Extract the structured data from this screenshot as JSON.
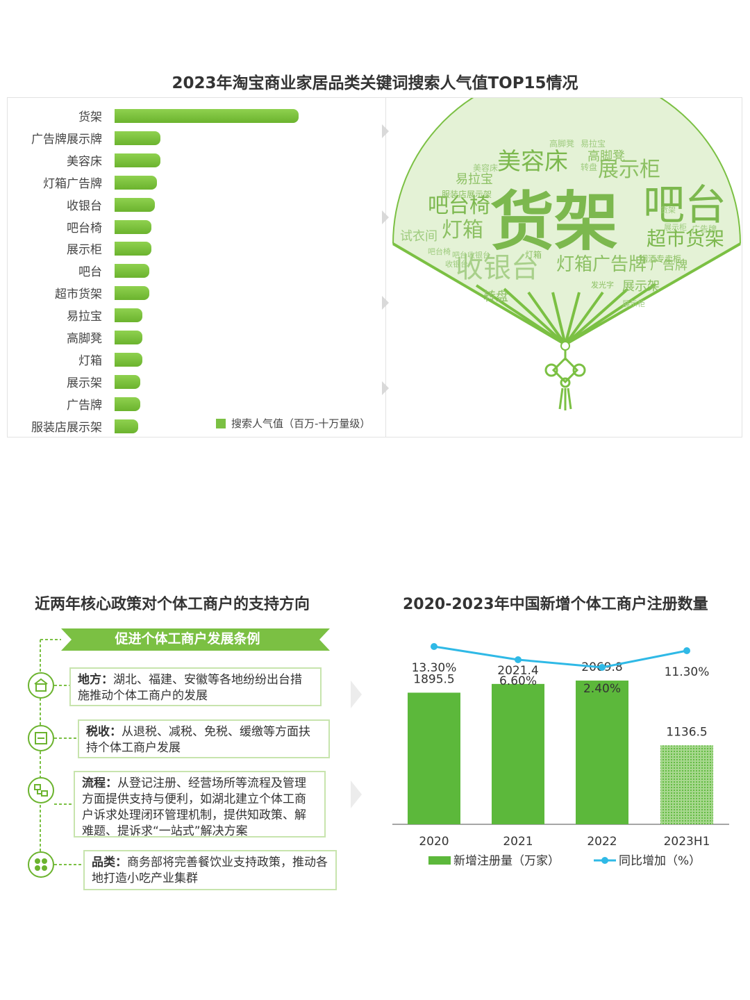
{
  "top": {
    "title": "2023年淘宝商业家居品类关键词搜索人气值TOP15情况",
    "legend": "搜索人气值（百万-十万量级）",
    "chart_data": {
      "type": "bar",
      "orientation": "horizontal",
      "categories": [
        "货架",
        "广告牌展示牌",
        "美容床",
        "灯箱广告牌",
        "收银台",
        "吧台椅",
        "展示柜",
        "吧台",
        "超市货架",
        "易拉宝",
        "高脚凳",
        "灯箱",
        "展示架",
        "广告牌",
        "服装店展示架"
      ],
      "values": [
        100,
        25,
        25,
        23,
        22,
        20,
        20,
        19,
        19,
        15,
        15,
        15,
        14,
        14,
        13
      ],
      "series_name": "搜索人气值（百万-十万量级）",
      "title": "2023年淘宝商业家居品类关键词搜索人气值TOP15情况",
      "xlabel": "",
      "ylabel": ""
    },
    "wordcloud": {
      "words": [
        {
          "text": "货架"
        },
        {
          "text": "吧台"
        },
        {
          "text": "美容床"
        },
        {
          "text": "展示柜"
        },
        {
          "text": "吧台椅"
        },
        {
          "text": "灯箱"
        },
        {
          "text": "收银台"
        },
        {
          "text": "超市货架"
        },
        {
          "text": "灯箱广告牌"
        },
        {
          "text": "高脚凳"
        },
        {
          "text": "易拉宝"
        },
        {
          "text": "试衣间"
        },
        {
          "text": "广告牌"
        },
        {
          "text": "展示架"
        },
        {
          "text": "转盘"
        },
        {
          "text": "服装店展示架"
        },
        {
          "text": "吧台收银台"
        },
        {
          "text": "发光字"
        },
        {
          "text": "展示柜"
        },
        {
          "text": "烟酒专卖柜"
        },
        {
          "text": "高脚凳"
        },
        {
          "text": "易拉宝"
        },
        {
          "text": "美容床"
        },
        {
          "text": "货架"
        },
        {
          "text": "转盘"
        },
        {
          "text": "广告牌"
        },
        {
          "text": "灯箱"
        },
        {
          "text": "吧台椅"
        },
        {
          "text": "收银台"
        },
        {
          "text": "展示柜"
        }
      ]
    }
  },
  "policy": {
    "title": "近两年核心政策对个体工商户的支持方向",
    "banner": "促进个体工商户发展条例",
    "items": [
      {
        "key": "地方：",
        "text": "湖北、福建、安徽等各地纷纷出台措施推动个体工商户的发展",
        "icon": "building-icon"
      },
      {
        "key": "税收：",
        "text": "从退税、减税、免税、缓缴等方面扶持个体工商户发展",
        "icon": "tax-icon"
      },
      {
        "key": "流程：",
        "text": "从登记注册、经营场所等流程及管理方面提供支持与便利，如湖北建立个体工商户诉求处理闭环管理机制，提供知政策、解难题、提诉求“一站式”解决方案",
        "icon": "process-icon"
      },
      {
        "key": "品类：",
        "text": "商务部将完善餐饮业支持政策，推动各地打造小吃产业集群",
        "icon": "category-icon"
      }
    ]
  },
  "registration": {
    "title": "2020-2023年中国新增个体工商户注册数量",
    "chart_data": {
      "type": "bar",
      "title": "2020-2023年中国新增个体工商户注册数量",
      "categories": [
        "2020",
        "2021",
        "2022",
        "2023H1"
      ],
      "series": [
        {
          "name": "新增注册量（万家）",
          "type": "bar",
          "values": [
            1895.5,
            2021.4,
            2069.8,
            1136.5
          ],
          "labels": [
            "1895.5",
            "2021.4",
            "2069.8",
            "1136.5"
          ]
        },
        {
          "name": "同比增加（%）",
          "type": "line",
          "values": [
            13.3,
            6.6,
            2.4,
            11.3
          ],
          "labels": [
            "13.30%",
            "6.60%",
            "2.40%",
            "11.30%"
          ]
        }
      ],
      "ylim": [
        0,
        2500
      ],
      "colors": {
        "bar": "#5cb83b",
        "line": "#2fb9e6"
      }
    }
  }
}
